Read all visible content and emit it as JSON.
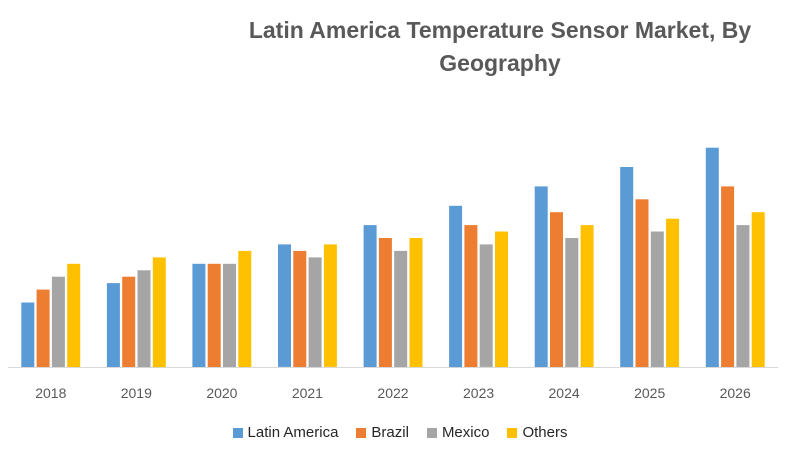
{
  "chart_data": {
    "type": "bar",
    "title": "Latin America Temperature Sensor Market, By Geography",
    "title_lines": [
      "Latin America Temperature Sensor Market, By",
      "Geography"
    ],
    "xlabel": "",
    "ylabel": "",
    "categories": [
      "2018",
      "2019",
      "2020",
      "2021",
      "2022",
      "2023",
      "2024",
      "2025",
      "2026"
    ],
    "series": [
      {
        "name": "Latin America",
        "color": "#5B9BD5",
        "values": [
          10,
          13,
          16,
          19,
          22,
          25,
          28,
          31,
          34
        ]
      },
      {
        "name": "Brazil",
        "color": "#ED7D31",
        "values": [
          12,
          14,
          16,
          18,
          20,
          22,
          24,
          26,
          28
        ]
      },
      {
        "name": "Mexico",
        "color": "#A5A5A5",
        "values": [
          14,
          15,
          16,
          17,
          18,
          19,
          20,
          21,
          22
        ]
      },
      {
        "name": "Others",
        "color": "#FFC000",
        "values": [
          16,
          17,
          18,
          19,
          20,
          21,
          22,
          23,
          24
        ]
      }
    ],
    "ylim": [
      0,
      36
    ],
    "grid": false,
    "legend_position": "bottom"
  }
}
